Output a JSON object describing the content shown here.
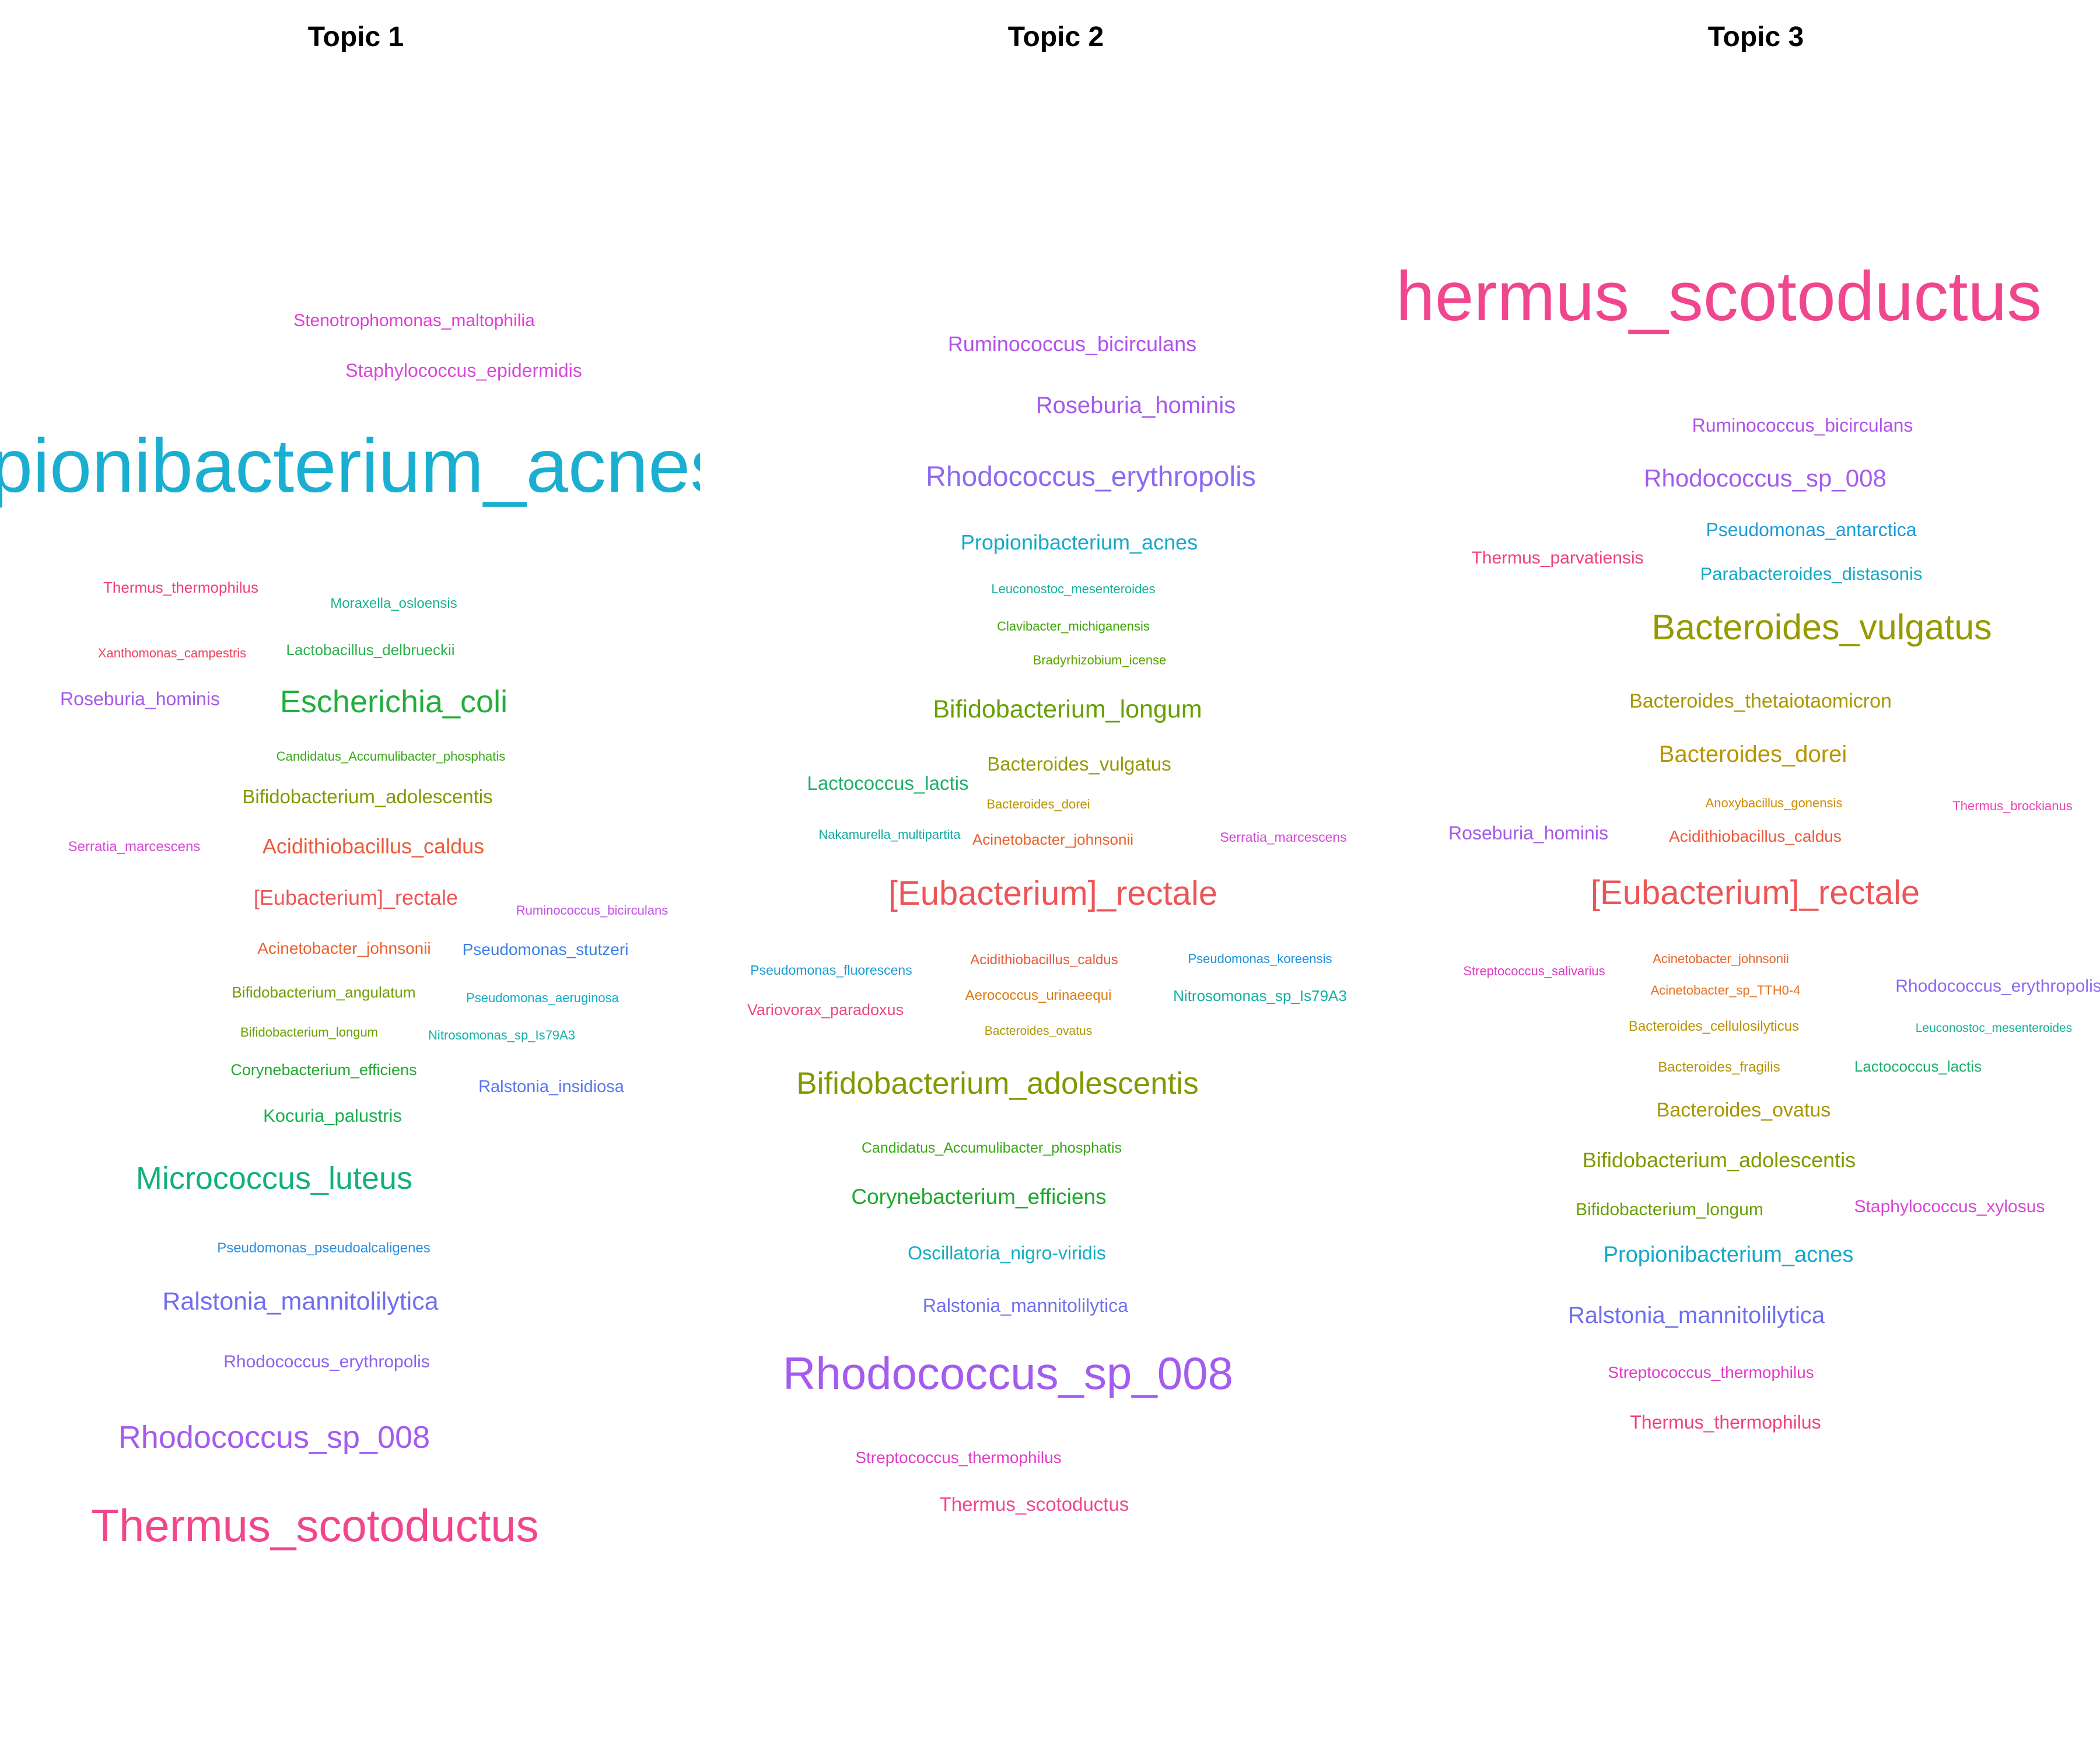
{
  "chart_data": {
    "type": "wordcloud",
    "panels": [
      {
        "title": "Topic 1",
        "words": [
          {
            "text": "Stenotrophomonas_maltophilia",
            "color": "#E33CD6"
          },
          {
            "text": "Staphylococcus_epidermidis",
            "color": "#D847D9"
          },
          {
            "text": "Propionibacterium_acnes",
            "color": "#1AAFD0"
          },
          {
            "text": "Thermus_thermophilus",
            "color": "#F0407E"
          },
          {
            "text": "Moraxella_osloensis",
            "color": "#19B38C"
          },
          {
            "text": "Xanthomonas_campestris",
            "color": "#F2415C"
          },
          {
            "text": "Lactobacillus_delbrueckii",
            "color": "#2EB04E"
          },
          {
            "text": "Roseburia_hominis",
            "color": "#A55AE8"
          },
          {
            "text": "Escherichia_coli",
            "color": "#23AE3C"
          },
          {
            "text": "Candidatus_Accumulibacter_phosphatis",
            "color": "#3BA81A"
          },
          {
            "text": "Bifidobacterium_adolescentis",
            "color": "#7F9A00"
          },
          {
            "text": "Serratia_marcescens",
            "color": "#D848D6"
          },
          {
            "text": "Acidithiobacillus_caldus",
            "color": "#EA5A3A"
          },
          {
            "text": "[Eubacterium]_rectale",
            "color": "#EC5557"
          },
          {
            "text": "Ruminococcus_bicirculans",
            "color": "#C24FE8"
          },
          {
            "text": "Acinetobacter_johnsonii",
            "color": "#E8622C"
          },
          {
            "text": "Pseudomonas_stutzeri",
            "color": "#3B7FE6"
          },
          {
            "text": "Bifidobacterium_angulatum",
            "color": "#6F9C00"
          },
          {
            "text": "Pseudomonas_aeruginosa",
            "color": "#10AEC4"
          },
          {
            "text": "Bifidobacterium_longum",
            "color": "#6A9F00"
          },
          {
            "text": "Nitrosomonas_sp_Is79A3",
            "color": "#12B0A8"
          },
          {
            "text": "Corynebacterium_efficiens",
            "color": "#1FA82E"
          },
          {
            "text": "Ralstonia_insidiosa",
            "color": "#5B75F0"
          },
          {
            "text": "Kocuria_palustris",
            "color": "#18AC4E"
          },
          {
            "text": "Micrococcus_luteus",
            "color": "#12B07E"
          },
          {
            "text": "Pseudomonas_pseudoalcaligenes",
            "color": "#2C8FE0"
          },
          {
            "text": "Ralstonia_mannitolilytica",
            "color": "#6F6FEE"
          },
          {
            "text": "Rhodococcus_erythropolis",
            "color": "#8F62EE"
          },
          {
            "text": "Rhodococcus_sp_008",
            "color": "#A45BEE"
          },
          {
            "text": "Thermus_scotoductus",
            "color": "#F0468E"
          }
        ]
      },
      {
        "title": "Topic 2",
        "words": [
          {
            "text": "Ruminococcus_bicirculans",
            "color": "#B052EA"
          },
          {
            "text": "Roseburia_hominis",
            "color": "#A55AE8"
          },
          {
            "text": "Rhodococcus_erythropolis",
            "color": "#8C6AF0"
          },
          {
            "text": "Propionibacterium_acnes",
            "color": "#14A8C8"
          },
          {
            "text": "Leuconostoc_mesenteroides",
            "color": "#16B09A"
          },
          {
            "text": "Clavibacter_michiganensis",
            "color": "#3CA600"
          },
          {
            "text": "Bradyrhizobium_icense",
            "color": "#5CA200"
          },
          {
            "text": "Bifidobacterium_longum",
            "color": "#66A000"
          },
          {
            "text": "Lactococcus_lactis",
            "color": "#1DAF6A"
          },
          {
            "text": "Bacteroides_vulgatus",
            "color": "#959A00"
          },
          {
            "text": "Bacteroides_dorei",
            "color": "#B89400"
          },
          {
            "text": "Nakamurella_multipartita",
            "color": "#17A9A0"
          },
          {
            "text": "Acinetobacter_johnsonii",
            "color": "#E8622C"
          },
          {
            "text": "Serratia_marcescens",
            "color": "#D445D6"
          },
          {
            "text": "[Eubacterium]_rectale",
            "color": "#EC5557"
          },
          {
            "text": "Pseudomonas_fluorescens",
            "color": "#1A9CD6"
          },
          {
            "text": "Acidithiobacillus_caldus",
            "color": "#EA5A3A"
          },
          {
            "text": "Pseudomonas_koreensis",
            "color": "#1A90DD"
          },
          {
            "text": "Variovorax_paradoxus",
            "color": "#EE4A7C"
          },
          {
            "text": "Aerococcus_urinaeequi",
            "color": "#DC7A0A"
          },
          {
            "text": "Nitrosomonas_sp_Is79A3",
            "color": "#12B0A0"
          },
          {
            "text": "Bacteroides_ovatus",
            "color": "#A89600"
          },
          {
            "text": "Bifidobacterium_adolescentis",
            "color": "#7F9A00"
          },
          {
            "text": "Candidatus_Accumulibacter_phosphatis",
            "color": "#3BA81A"
          },
          {
            "text": "Corynebacterium_efficiens",
            "color": "#1FA82E"
          },
          {
            "text": "Oscillatoria_nigro-viridis",
            "color": "#14ACC0"
          },
          {
            "text": "Ralstonia_mannitolilytica",
            "color": "#6F6FEE"
          },
          {
            "text": "Rhodococcus_sp_008",
            "color": "#A45BEE"
          },
          {
            "text": "Streptococcus_thermophilus",
            "color": "#E03CC8"
          },
          {
            "text": "Thermus_scotoductus",
            "color": "#F0468E"
          }
        ]
      },
      {
        "title": "Topic 3",
        "words": [
          {
            "text": "Thermus_scotoductus",
            "color": "#F0468E"
          },
          {
            "text": "Ruminococcus_bicirculans",
            "color": "#B052EA"
          },
          {
            "text": "Rhodococcus_sp_008",
            "color": "#A45BEE"
          },
          {
            "text": "Pseudomonas_antarctica",
            "color": "#1C9CD8"
          },
          {
            "text": "Thermus_parvatiensis",
            "color": "#F0407E"
          },
          {
            "text": "Parabacteroides_distasonis",
            "color": "#14A8C4"
          },
          {
            "text": "Bacteroides_vulgatus",
            "color": "#959A00"
          },
          {
            "text": "Bacteroides_thetaiotaomicron",
            "color": "#A89600"
          },
          {
            "text": "Bacteroides_dorei",
            "color": "#B89400"
          },
          {
            "text": "Anoxybacillus_gonensis",
            "color": "#D08A00"
          },
          {
            "text": "Thermus_brockianus",
            "color": "#EE44B4"
          },
          {
            "text": "Roseburia_hominis",
            "color": "#A55AE8"
          },
          {
            "text": "Acidithiobacillus_caldus",
            "color": "#EA5A3A"
          },
          {
            "text": "[Eubacterium]_rectale",
            "color": "#EC5557"
          },
          {
            "text": "Streptococcus_salivarius",
            "color": "#DE3CC4"
          },
          {
            "text": "Acinetobacter_johnsonii",
            "color": "#E8622C"
          },
          {
            "text": "Acinetobacter_sp_TTH0-4",
            "color": "#E6701E"
          },
          {
            "text": "Rhodococcus_erythropolis",
            "color": "#8C6AF0"
          },
          {
            "text": "Bacteroides_cellulosilyticus",
            "color": "#BC9200"
          },
          {
            "text": "Leuconostoc_mesenteroides",
            "color": "#16B09A"
          },
          {
            "text": "Bacteroides_fragilis",
            "color": "#B49400"
          },
          {
            "text": "Lactococcus_lactis",
            "color": "#1DAF6A"
          },
          {
            "text": "Bacteroides_ovatus",
            "color": "#A89600"
          },
          {
            "text": "Bifidobacterium_adolescentis",
            "color": "#7F9A00"
          },
          {
            "text": "Bifidobacterium_longum",
            "color": "#66A000"
          },
          {
            "text": "Staphylococcus_xylosus",
            "color": "#D846D8"
          },
          {
            "text": "Propionibacterium_acnes",
            "color": "#14A8C8"
          },
          {
            "text": "Ralstonia_mannitolilytica",
            "color": "#6F6FEE"
          },
          {
            "text": "Streptococcus_thermophilus",
            "color": "#E03CC8"
          },
          {
            "text": "Thermus_thermophilus",
            "color": "#F0407E"
          }
        ]
      }
    ]
  }
}
